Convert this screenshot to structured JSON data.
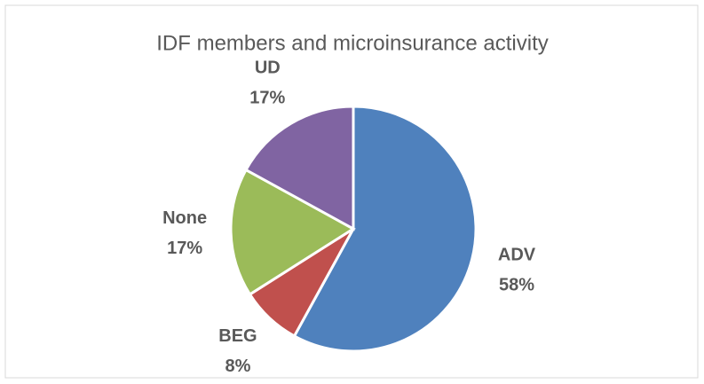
{
  "chart_data": {
    "type": "pie",
    "title": "IDF members and microinsurance activity",
    "categories": [
      "ADV",
      "BEG",
      "None",
      "UD"
    ],
    "values": [
      58,
      8,
      17,
      17
    ],
    "value_labels": [
      "58%",
      "8%",
      "17%",
      "17%"
    ],
    "colors": [
      "#4f81bd",
      "#c0504d",
      "#9bbb59",
      "#8064a2"
    ]
  }
}
